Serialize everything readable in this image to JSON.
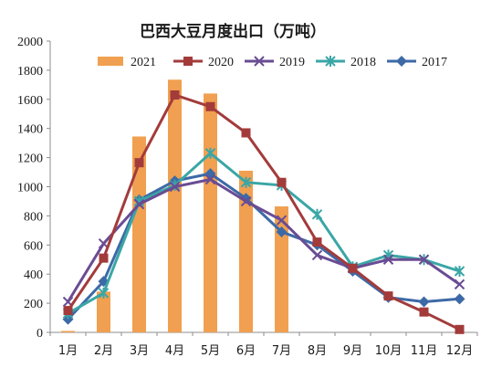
{
  "chart_data": {
    "type": "bar",
    "title": "巴西大豆月度出口（万吨）",
    "xlabel": "",
    "ylabel": "",
    "categories": [
      "1月",
      "2月",
      "3月",
      "4月",
      "5月",
      "6月",
      "7月",
      "8月",
      "9月",
      "10月",
      "11月",
      "12月"
    ],
    "ylim": [
      0,
      2000
    ],
    "yticks": [
      "0",
      "200",
      "400",
      "600",
      "800",
      "1000",
      "1200",
      "1400",
      "1600",
      "1800",
      "2000"
    ],
    "grid": false,
    "legend_position": "top",
    "series": [
      {
        "name": "2021",
        "type": "bar",
        "color": "#f0a050",
        "values": [
          10,
          280,
          1345,
          1735,
          1640,
          1110,
          865,
          null,
          null,
          null,
          null,
          null
        ]
      },
      {
        "name": "2020",
        "type": "line",
        "marker": "square",
        "color": "#a33b3b",
        "values": [
          150,
          510,
          1165,
          1630,
          1550,
          1370,
          1030,
          620,
          440,
          250,
          140,
          20
        ]
      },
      {
        "name": "2019",
        "type": "line",
        "marker": "x",
        "color": "#6a4c93",
        "values": [
          210,
          610,
          880,
          1000,
          1050,
          900,
          770,
          530,
          440,
          500,
          500,
          330
        ]
      },
      {
        "name": "2018",
        "type": "line",
        "marker": "star",
        "color": "#3aa6a6",
        "values": [
          130,
          270,
          900,
          1010,
          1230,
          1030,
          1010,
          810,
          450,
          530,
          500,
          420
        ]
      },
      {
        "name": "2017",
        "type": "line",
        "marker": "diamond",
        "color": "#3d6aa6",
        "values": [
          90,
          350,
          910,
          1040,
          1090,
          920,
          690,
          600,
          420,
          240,
          210,
          230
        ]
      }
    ]
  }
}
